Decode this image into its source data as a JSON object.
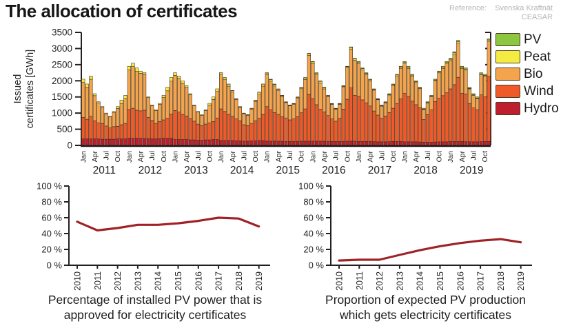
{
  "header": {
    "title": "The allocation of certificates",
    "reference_label": "Reference:",
    "reference_line1": "Svenska Kraftnät",
    "reference_line2": "CEASAR"
  },
  "colors": {
    "axis": "#231f20",
    "text": "#231f20",
    "pv": "#8dc63f",
    "peat": "#f5ec42",
    "bio": "#f4a44c",
    "wind": "#f05a28",
    "hydro": "#be1e2d",
    "line": "#9f2227"
  },
  "chart_data": [
    {
      "type": "bar",
      "stacked": true,
      "title": "",
      "ylabel": "Issued certificates [GWh]",
      "ylabel_lines": [
        "Issued",
        "certificates [GWh]"
      ],
      "ylim": [
        0,
        3500
      ],
      "yticks": [
        0,
        500,
        1000,
        1500,
        2000,
        2500,
        3000,
        3500
      ],
      "years": [
        "2011",
        "2012",
        "2013",
        "2014",
        "2015",
        "2016",
        "2017",
        "2018",
        "2019"
      ],
      "month_tick_labels": [
        "Jan",
        "Apr",
        "Jul",
        "Oct"
      ],
      "month_tick_positions": [
        0,
        3,
        6,
        9
      ],
      "x_start": "Jan 2011",
      "x_end": "Nov 2019",
      "legend_position": "right",
      "legend_order_top_to_bottom": [
        "PV",
        "Peat",
        "Bio",
        "Wind",
        "Hydro"
      ],
      "series": [
        {
          "name": "Hydro",
          "color": "#be1e2d",
          "values": [
            200,
            200,
            200,
            200,
            200,
            190,
            190,
            190,
            190,
            200,
            200,
            200,
            220,
            220,
            220,
            220,
            210,
            210,
            200,
            200,
            210,
            220,
            220,
            220,
            180,
            180,
            180,
            180,
            170,
            170,
            160,
            160,
            170,
            170,
            180,
            180,
            150,
            150,
            150,
            150,
            140,
            140,
            130,
            130,
            140,
            140,
            150,
            150,
            130,
            130,
            130,
            130,
            125,
            120,
            120,
            120,
            125,
            130,
            130,
            130,
            130,
            130,
            130,
            130,
            125,
            120,
            120,
            120,
            125,
            130,
            130,
            130,
            120,
            120,
            120,
            120,
            115,
            110,
            110,
            110,
            115,
            120,
            120,
            120,
            110,
            110,
            110,
            110,
            105,
            100,
            100,
            100,
            105,
            110,
            110,
            110,
            120,
            120,
            120,
            120,
            115,
            110,
            110,
            110,
            115,
            120,
            120
          ]
        },
        {
          "name": "Wind",
          "color": "#f05a28",
          "values": [
            670,
            610,
            700,
            560,
            500,
            490,
            410,
            350,
            390,
            390,
            440,
            480,
            890,
            930,
            870,
            850,
            880,
            660,
            570,
            480,
            530,
            570,
            620,
            750,
            900,
            850,
            780,
            730,
            660,
            580,
            500,
            450,
            490,
            530,
            560,
            670,
            980,
            900,
            810,
            750,
            680,
            620,
            510,
            480,
            540,
            620,
            690,
            810,
            1070,
            970,
            890,
            830,
            760,
            730,
            670,
            700,
            760,
            880,
            1000,
            1450,
            1320,
            1130,
            990,
            910,
            800,
            700,
            630,
            720,
            1000,
            1300,
            1650,
            1420,
            1400,
            1290,
            1200,
            1100,
            950,
            830,
            730,
            800,
            900,
            1030,
            1180,
            1320,
            1500,
            1410,
            1260,
            1150,
            1060,
            700,
            850,
            1000,
            1250,
            1350,
            1430,
            1520,
            1630,
            1760,
            1990,
            1490,
            1480,
            1180,
            1050,
            990,
            1450,
            1380,
            2020
          ]
        },
        {
          "name": "Bio",
          "color": "#f4a44c",
          "values": [
            1080,
            990,
            1150,
            780,
            620,
            500,
            380,
            340,
            440,
            550,
            660,
            770,
            1230,
            1290,
            1200,
            1160,
            1120,
            610,
            460,
            400,
            530,
            690,
            850,
            1020,
            1090,
            1040,
            960,
            890,
            740,
            480,
            370,
            320,
            420,
            550,
            680,
            820,
            1055,
            985,
            875,
            755,
            600,
            420,
            340,
            320,
            445,
            595,
            745,
            875,
            990,
            890,
            820,
            745,
            630,
            475,
            435,
            455,
            585,
            745,
            910,
            1210,
            1085,
            925,
            815,
            710,
            590,
            450,
            370,
            430,
            690,
            970,
            1205,
            1085,
            1020,
            930,
            870,
            780,
            645,
            475,
            375,
            405,
            545,
            700,
            840,
            950,
            925,
            865,
            765,
            685,
            590,
            310,
            360,
            410,
            650,
            785,
            845,
            905,
            875,
            945,
            1065,
            775,
            745,
            460,
            390,
            350,
            630,
            635,
            1085
          ]
        },
        {
          "name": "Peat",
          "color": "#f5ec42",
          "values": [
            100,
            100,
            100,
            60,
            30,
            20,
            20,
            20,
            30,
            60,
            100,
            100,
            110,
            110,
            110,
            70,
            40,
            20,
            20,
            20,
            30,
            70,
            110,
            110,
            80,
            80,
            80,
            50,
            30,
            20,
            20,
            20,
            20,
            50,
            80,
            80,
            60,
            60,
            60,
            40,
            25,
            15,
            15,
            15,
            20,
            40,
            60,
            60,
            50,
            50,
            50,
            35,
            25,
            15,
            15,
            15,
            20,
            35,
            50,
            50,
            50,
            50,
            50,
            35,
            20,
            15,
            15,
            15,
            20,
            35,
            50,
            50,
            40,
            40,
            40,
            30,
            20,
            15,
            15,
            15,
            20,
            30,
            40,
            40,
            40,
            40,
            40,
            30,
            20,
            15,
            15,
            15,
            20,
            30,
            40,
            40,
            40,
            40,
            40,
            30,
            25,
            15,
            15,
            15,
            20,
            30,
            40
          ]
        },
        {
          "name": "PV",
          "color": "#8dc63f",
          "values": [
            0,
            0,
            0,
            0,
            0,
            0,
            0,
            0,
            0,
            0,
            0,
            0,
            0,
            0,
            0,
            0,
            0,
            0,
            0,
            0,
            0,
            0,
            0,
            0,
            0,
            0,
            0,
            0,
            0,
            0,
            0,
            0,
            0,
            0,
            0,
            0,
            5,
            5,
            5,
            5,
            5,
            5,
            5,
            5,
            5,
            5,
            5,
            5,
            10,
            10,
            10,
            10,
            10,
            10,
            10,
            10,
            10,
            10,
            10,
            10,
            15,
            15,
            15,
            15,
            15,
            15,
            15,
            15,
            15,
            15,
            15,
            15,
            20,
            20,
            20,
            20,
            20,
            20,
            20,
            20,
            20,
            20,
            20,
            20,
            25,
            25,
            25,
            25,
            25,
            25,
            25,
            25,
            25,
            25,
            25,
            25,
            35,
            35,
            35,
            35,
            35,
            35,
            35,
            35,
            35,
            35,
            35
          ]
        }
      ]
    },
    {
      "type": "line",
      "categories": [
        "2010",
        "2011",
        "2012",
        "2013",
        "2014",
        "2015",
        "2016",
        "2017",
        "2018",
        "2019"
      ],
      "values": [
        55,
        44,
        47,
        51,
        51,
        53,
        56,
        60,
        59,
        49
      ],
      "ylim": [
        0,
        100
      ],
      "yticks": [
        0,
        20,
        40,
        60,
        80,
        100
      ],
      "ytick_suffix": " %",
      "color": "#9f2227",
      "caption_line1": "Percentage of installed PV power that is",
      "caption_line2": "approved for electricity certificates"
    },
    {
      "type": "line",
      "categories": [
        "2010",
        "2011",
        "2012",
        "2013",
        "2014",
        "2015",
        "2016",
        "2017",
        "2018",
        "2019"
      ],
      "values": [
        6,
        7,
        7,
        13,
        19,
        24,
        28,
        31,
        33,
        29
      ],
      "ylim": [
        0,
        100
      ],
      "yticks": [
        0,
        20,
        40,
        60,
        80,
        100
      ],
      "ytick_suffix": " %",
      "color": "#9f2227",
      "caption_line1": "Proportion of expected PV production",
      "caption_line2": "which gets electricity certificates"
    }
  ]
}
